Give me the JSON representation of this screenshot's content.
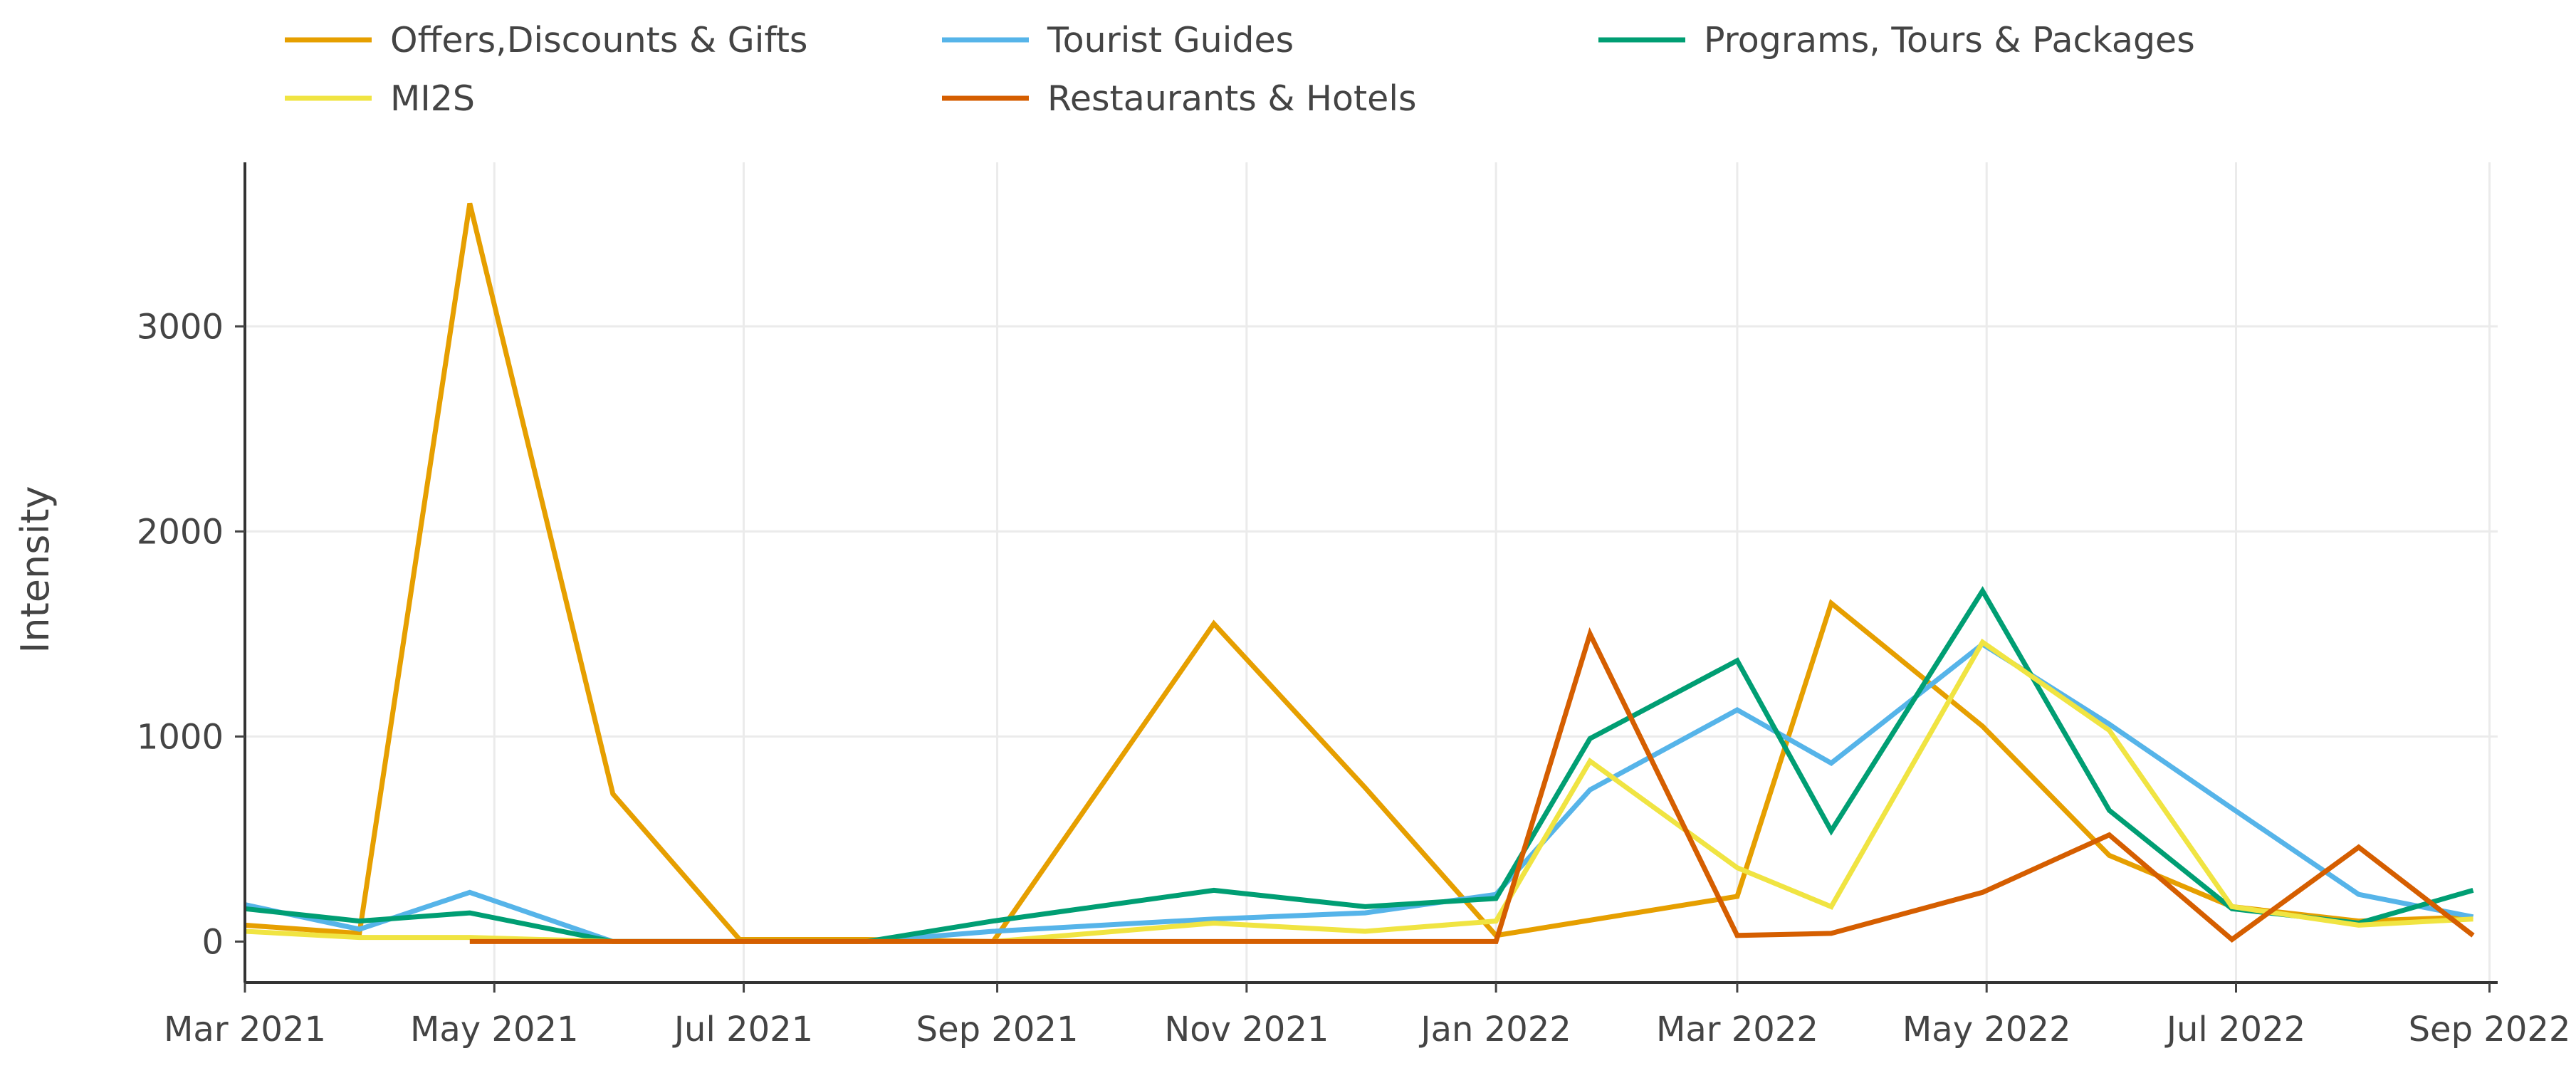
{
  "chart_data": {
    "type": "line",
    "title": "",
    "xlabel": "",
    "ylabel": "Intensity",
    "x_ticks": [
      "Mar 2021",
      "May 2021",
      "Jul 2021",
      "Sep 2021",
      "Nov 2021",
      "Jan 2022",
      "Mar 2022",
      "May 2022",
      "Jul 2022",
      "Sep 2022"
    ],
    "y_ticks": [
      "0",
      "1000",
      "2000",
      "3000"
    ],
    "xlim": [
      "2021-03-01",
      "2022-09-03"
    ],
    "ylim": [
      -200,
      3800
    ],
    "grid": true,
    "legend_position": "top",
    "series": [
      {
        "name": "Offers,Discounts & Gifts",
        "color": "#E69F00",
        "points": [
          [
            "2021-03-01",
            80
          ],
          [
            "2021-03-29",
            40
          ],
          [
            "2021-04-25",
            3600
          ],
          [
            "2021-05-30",
            720
          ],
          [
            "2021-06-30",
            10
          ],
          [
            "2021-07-31",
            10
          ],
          [
            "2021-08-31",
            0
          ],
          [
            "2021-10-24",
            1550
          ],
          [
            "2021-11-30",
            750
          ],
          [
            "2022-01-01",
            30
          ],
          [
            "2022-03-01",
            220
          ],
          [
            "2022-03-24",
            1650
          ],
          [
            "2022-04-30",
            1050
          ],
          [
            "2022-05-31",
            420
          ],
          [
            "2022-06-30",
            170
          ],
          [
            "2022-07-31",
            100
          ],
          [
            "2022-08-28",
            120
          ]
        ]
      },
      {
        "name": "Tourist Guides",
        "color": "#56B4E9",
        "points": [
          [
            "2021-03-01",
            180
          ],
          [
            "2021-03-29",
            60
          ],
          [
            "2021-04-25",
            240
          ],
          [
            "2021-05-30",
            0
          ],
          [
            "2021-06-30",
            0
          ],
          [
            "2021-07-31",
            0
          ],
          [
            "2021-08-31",
            50
          ],
          [
            "2021-10-24",
            110
          ],
          [
            "2021-11-30",
            140
          ],
          [
            "2022-01-01",
            230
          ],
          [
            "2022-01-24",
            740
          ],
          [
            "2022-03-01",
            1130
          ],
          [
            "2022-03-24",
            870
          ],
          [
            "2022-04-30",
            1450
          ],
          [
            "2022-05-31",
            1060
          ],
          [
            "2022-06-30",
            650
          ],
          [
            "2022-07-31",
            230
          ],
          [
            "2022-08-28",
            120
          ]
        ]
      },
      {
        "name": "Programs, Tours & Packages",
        "color": "#009E73",
        "points": [
          [
            "2021-03-01",
            160
          ],
          [
            "2021-03-29",
            100
          ],
          [
            "2021-04-25",
            140
          ],
          [
            "2021-05-30",
            0
          ],
          [
            "2021-06-30",
            0
          ],
          [
            "2021-07-31",
            0
          ],
          [
            "2021-08-31",
            100
          ],
          [
            "2021-10-24",
            250
          ],
          [
            "2021-11-30",
            170
          ],
          [
            "2022-01-01",
            210
          ],
          [
            "2022-01-24",
            990
          ],
          [
            "2022-03-01",
            1370
          ],
          [
            "2022-03-24",
            540
          ],
          [
            "2022-04-30",
            1710
          ],
          [
            "2022-05-31",
            640
          ],
          [
            "2022-06-30",
            160
          ],
          [
            "2022-07-31",
            90
          ],
          [
            "2022-08-28",
            250
          ]
        ]
      },
      {
        "name": "MI2S",
        "color": "#F0E442",
        "points": [
          [
            "2021-03-01",
            50
          ],
          [
            "2021-03-29",
            20
          ],
          [
            "2021-04-25",
            20
          ],
          [
            "2021-05-30",
            0
          ],
          [
            "2021-06-30",
            0
          ],
          [
            "2021-07-31",
            0
          ],
          [
            "2021-08-31",
            0
          ],
          [
            "2021-10-24",
            90
          ],
          [
            "2021-11-30",
            50
          ],
          [
            "2022-01-01",
            100
          ],
          [
            "2022-01-24",
            880
          ],
          [
            "2022-03-01",
            360
          ],
          [
            "2022-03-24",
            170
          ],
          [
            "2022-04-30",
            1460
          ],
          [
            "2022-05-31",
            1030
          ],
          [
            "2022-06-30",
            170
          ],
          [
            "2022-07-31",
            80
          ],
          [
            "2022-08-28",
            110
          ]
        ]
      },
      {
        "name": "Restaurants & Hotels",
        "color": "#D55E00",
        "points": [
          [
            "2021-04-25",
            0
          ],
          [
            "2021-05-30",
            0
          ],
          [
            "2021-06-30",
            0
          ],
          [
            "2021-07-31",
            0
          ],
          [
            "2021-08-31",
            0
          ],
          [
            "2021-10-24",
            0
          ],
          [
            "2021-11-30",
            0
          ],
          [
            "2022-01-01",
            0
          ],
          [
            "2022-01-24",
            1500
          ],
          [
            "2022-03-01",
            30
          ],
          [
            "2022-03-24",
            40
          ],
          [
            "2022-04-30",
            240
          ],
          [
            "2022-05-31",
            520
          ],
          [
            "2022-06-30",
            10
          ],
          [
            "2022-07-31",
            460
          ],
          [
            "2022-08-28",
            30
          ]
        ]
      }
    ]
  }
}
